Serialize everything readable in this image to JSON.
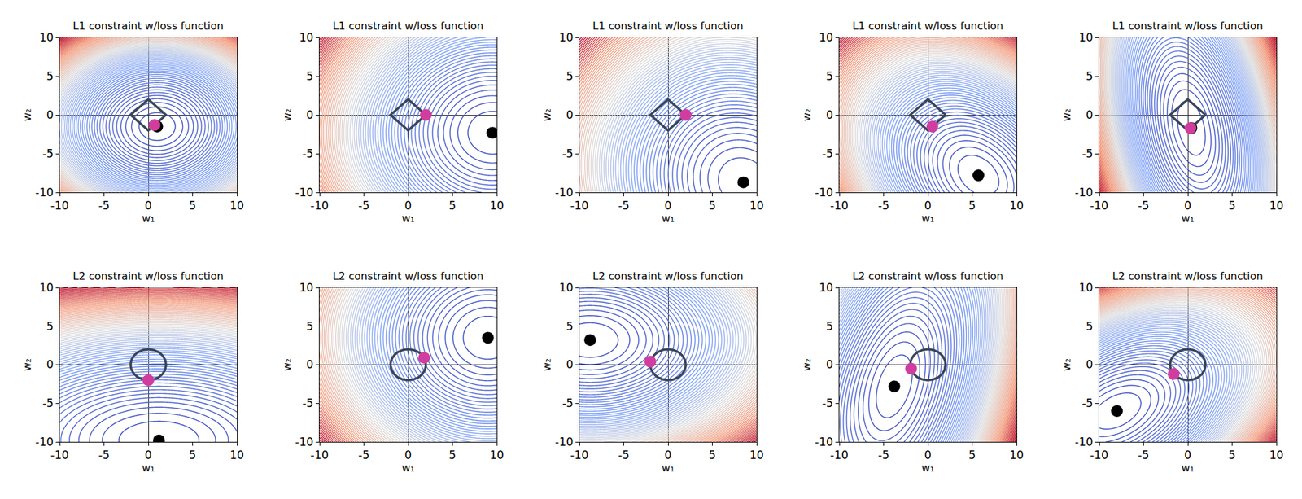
{
  "chart_data": [
    {
      "type": "contour",
      "title": "L1 constraint w/loss function",
      "x_label": "w₁",
      "y_label": "w₂",
      "xlim": [
        -10,
        10
      ],
      "ylim": [
        -10,
        10
      ],
      "xticks": [
        -10,
        -5,
        0,
        5,
        10
      ],
      "yticks": [
        -10,
        -5,
        0,
        5,
        10
      ],
      "grid": false,
      "constraint": "L1",
      "constraint_radius": 2,
      "constraint_color": "#3a4556",
      "loss_quadratic": [
        1,
        0,
        1.3
      ],
      "unconstrained_minimum": {
        "x": 1.0,
        "y": -1.5,
        "color": "#000000"
      },
      "constrained_minimum": {
        "x": 0.7,
        "y": -1.3,
        "color": "#d13d9e"
      }
    },
    {
      "type": "contour",
      "title": "L1 constraint w/loss function",
      "x_label": "w₁",
      "y_label": "w₂",
      "xlim": [
        -10,
        10
      ],
      "ylim": [
        -10,
        10
      ],
      "xticks": [
        -10,
        -5,
        0,
        5,
        10
      ],
      "yticks": [
        -10,
        -5,
        0,
        5,
        10
      ],
      "grid": false,
      "constraint": "L1",
      "constraint_radius": 2,
      "constraint_color": "#3a4556",
      "loss_quadratic": [
        1,
        0,
        1
      ],
      "unconstrained_minimum": {
        "x": 9.5,
        "y": -2.3,
        "color": "#000000"
      },
      "constrained_minimum": {
        "x": 2.0,
        "y": 0.0,
        "color": "#d13d9e"
      }
    },
    {
      "type": "contour",
      "title": "L1 constraint w/loss function",
      "x_label": "w₁",
      "y_label": "w₂",
      "xlim": [
        -10,
        10
      ],
      "ylim": [
        -10,
        10
      ],
      "xticks": [
        -10,
        -5,
        0,
        5,
        10
      ],
      "yticks": [
        -10,
        -5,
        0,
        5,
        10
      ],
      "grid": false,
      "constraint": "L1",
      "constraint_radius": 2,
      "constraint_color": "#3a4556",
      "loss_quadratic": [
        1,
        0.1,
        0.8
      ],
      "unconstrained_minimum": {
        "x": 8.5,
        "y": -8.7,
        "color": "#000000"
      },
      "constrained_minimum": {
        "x": 2.0,
        "y": 0.0,
        "color": "#d13d9e"
      }
    },
    {
      "type": "contour",
      "title": "L1 constraint w/loss function",
      "x_label": "w₁",
      "y_label": "w₂",
      "xlim": [
        -10,
        10
      ],
      "ylim": [
        -10,
        10
      ],
      "xticks": [
        -10,
        -5,
        0,
        5,
        10
      ],
      "yticks": [
        -10,
        -5,
        0,
        5,
        10
      ],
      "grid": false,
      "constraint": "L1",
      "constraint_radius": 2,
      "constraint_color": "#3a4556",
      "loss_quadratic": [
        1,
        0.3,
        0.8
      ],
      "unconstrained_minimum": {
        "x": 5.7,
        "y": -7.8,
        "color": "#000000"
      },
      "constrained_minimum": {
        "x": 0.5,
        "y": -1.5,
        "color": "#d13d9e"
      }
    },
    {
      "type": "contour",
      "title": "L1 constraint w/loss function",
      "x_label": "w₁",
      "y_label": "w₂",
      "xlim": [
        -10,
        10
      ],
      "ylim": [
        -10,
        10
      ],
      "xticks": [
        -10,
        -5,
        0,
        5,
        10
      ],
      "yticks": [
        -10,
        -5,
        0,
        5,
        10
      ],
      "grid": false,
      "constraint": "L1",
      "constraint_radius": 2,
      "constraint_color": "#3a4556",
      "loss_quadratic": [
        1,
        0.15,
        0.2
      ],
      "unconstrained_minimum": {
        "x": 0.4,
        "y": -1.7,
        "color": "#000000"
      },
      "constrained_minimum": {
        "x": 0.3,
        "y": -1.7,
        "color": "#d13d9e"
      }
    },
    {
      "type": "contour",
      "title": "L2 constraint w/loss function",
      "x_label": "w₁",
      "y_label": "w₂",
      "xlim": [
        -10,
        10
      ],
      "ylim": [
        -10,
        10
      ],
      "xticks": [
        -10,
        -5,
        0,
        5,
        10
      ],
      "yticks": [
        -10,
        -5,
        0,
        5,
        10
      ],
      "grid": false,
      "constraint": "L2",
      "constraint_radius": 2,
      "constraint_color": "#3a4556",
      "loss_quadratic": [
        0.3,
        0,
        1
      ],
      "unconstrained_minimum": {
        "x": 1.2,
        "y": -9.8,
        "color": "#000000"
      },
      "constrained_minimum": {
        "x": 0.0,
        "y": -2.0,
        "color": "#d13d9e"
      }
    },
    {
      "type": "contour",
      "title": "L2 constraint w/loss function",
      "x_label": "w₁",
      "y_label": "w₂",
      "xlim": [
        -10,
        10
      ],
      "ylim": [
        -10,
        10
      ],
      "xticks": [
        -10,
        -5,
        0,
        5,
        10
      ],
      "yticks": [
        -10,
        -5,
        0,
        5,
        10
      ],
      "grid": false,
      "constraint": "L2",
      "constraint_radius": 2,
      "constraint_color": "#3a4556",
      "loss_quadratic": [
        1,
        0,
        1
      ],
      "unconstrained_minimum": {
        "x": 9.0,
        "y": 3.5,
        "color": "#000000"
      },
      "constrained_minimum": {
        "x": 1.8,
        "y": 0.9,
        "color": "#d13d9e"
      }
    },
    {
      "type": "contour",
      "title": "L2 constraint w/loss function",
      "x_label": "w₁",
      "y_label": "w₂",
      "xlim": [
        -10,
        10
      ],
      "ylim": [
        -10,
        10
      ],
      "xticks": [
        -10,
        -5,
        0,
        5,
        10
      ],
      "yticks": [
        -10,
        -5,
        0,
        5,
        10
      ],
      "grid": false,
      "constraint": "L2",
      "constraint_radius": 2,
      "constraint_color": "#3a4556",
      "loss_quadratic": [
        0.5,
        0,
        1
      ],
      "unconstrained_minimum": {
        "x": -8.8,
        "y": 3.2,
        "color": "#000000"
      },
      "constrained_minimum": {
        "x": -2.0,
        "y": 0.4,
        "color": "#d13d9e"
      }
    },
    {
      "type": "contour",
      "title": "L2 constraint w/loss function",
      "x_label": "w₁",
      "y_label": "w₂",
      "xlim": [
        -10,
        10
      ],
      "ylim": [
        -10,
        10
      ],
      "xticks": [
        -10,
        -5,
        0,
        5,
        10
      ],
      "yticks": [
        -10,
        -5,
        0,
        5,
        10
      ],
      "grid": false,
      "constraint": "L2",
      "constraint_radius": 2,
      "constraint_color": "#3a4556",
      "loss_quadratic": [
        1,
        -0.2,
        0.25
      ],
      "unconstrained_minimum": {
        "x": -3.8,
        "y": -2.8,
        "color": "#000000"
      },
      "constrained_minimum": {
        "x": -1.9,
        "y": -0.5,
        "color": "#d13d9e"
      }
    },
    {
      "type": "contour",
      "title": "L2 constraint w/loss function",
      "x_label": "w₁",
      "y_label": "w₂",
      "xlim": [
        -10,
        10
      ],
      "ylim": [
        -10,
        10
      ],
      "xticks": [
        -10,
        -5,
        0,
        5,
        10
      ],
      "yticks": [
        -10,
        -5,
        0,
        5,
        10
      ],
      "grid": false,
      "constraint": "L2",
      "constraint_radius": 2,
      "constraint_color": "#3a4556",
      "loss_quadratic": [
        0.6,
        -0.3,
        0.8
      ],
      "unconstrained_minimum": {
        "x": -8.0,
        "y": -6.0,
        "color": "#000000"
      },
      "constrained_minimum": {
        "x": -1.6,
        "y": -1.2,
        "color": "#d13d9e"
      }
    }
  ]
}
